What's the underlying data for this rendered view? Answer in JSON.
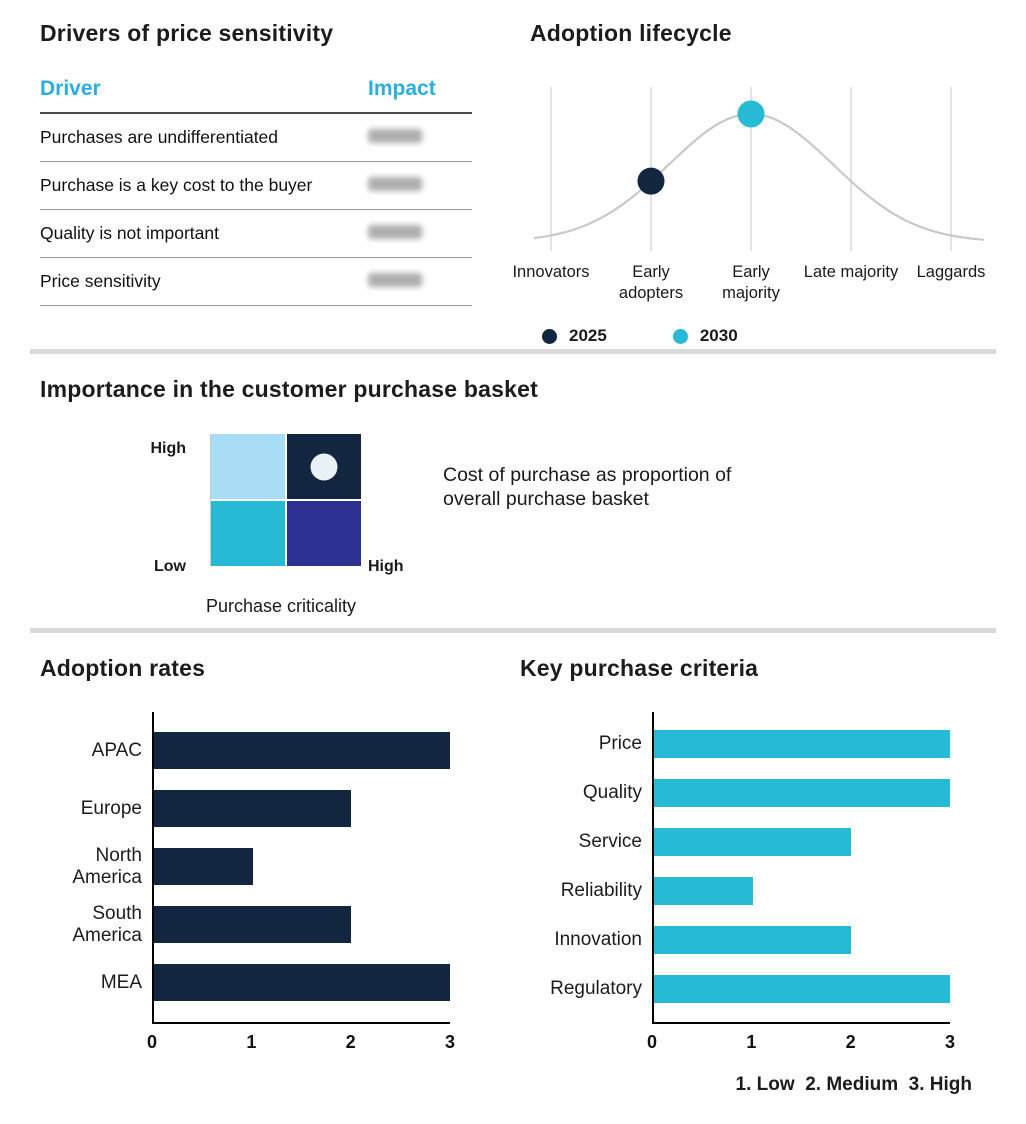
{
  "colors": {
    "navy": "#12263F",
    "cyan": "#26BAD5",
    "indigo": "#2E3192",
    "light_blue": "#A9DCF5",
    "pale_dot": "#E9F1F9",
    "header_accent": "#29AEDE",
    "curve_grey": "#C9C9C9",
    "grid_grey": "#DADADA",
    "divider": "#D9D9D9"
  },
  "chart_data": [
    {
      "id": "drivers_of_price_sensitivity",
      "type": "table",
      "title": "Drivers of price sensitivity",
      "columns": [
        "Driver",
        "Impact"
      ],
      "rows": [
        {
          "driver": "Purchases are undifferentiated",
          "impact_blurred": true
        },
        {
          "driver": "Purchase is a key cost to the buyer",
          "impact_blurred": true
        },
        {
          "driver": "Quality is not important",
          "impact_blurred": true
        },
        {
          "driver": "Price sensitivity",
          "impact_blurred": true
        }
      ]
    },
    {
      "id": "adoption_lifecycle",
      "type": "line",
      "title": "Adoption lifecycle",
      "categories": [
        "Innovators",
        "Early adopters",
        "Early majority",
        "Late majority",
        "Laggards"
      ],
      "curve": {
        "shape": "bell",
        "peak_category": "Early majority",
        "color": "#C9C9C9"
      },
      "markers": [
        {
          "series": "2025",
          "category": "Early adopters",
          "color": "#12263F"
        },
        {
          "series": "2030",
          "category": "Early majority",
          "color": "#26BAD5"
        }
      ],
      "legend": [
        {
          "label": "2025",
          "color": "#12263F"
        },
        {
          "label": "2030",
          "color": "#26BAD5"
        }
      ],
      "grid": "vertical-gridlines-per-category"
    },
    {
      "id": "purchase_basket_matrix",
      "type": "heatmap",
      "title": "Importance in the customer purchase basket",
      "y_axis_labels": {
        "top": "High",
        "bottom": "Low"
      },
      "x_axis_end_label": "High",
      "xlabel": "Purchase criticality",
      "annotation": "Cost of purchase as proportion of\noverall purchase basket",
      "cells": [
        [
          {
            "row": "High",
            "col": "left",
            "color": "#A9DCF5"
          },
          {
            "row": "High",
            "col": "right",
            "color": "#12263F",
            "marker": "pale-dot"
          }
        ],
        [
          {
            "row": "Low",
            "col": "left",
            "color": "#26BAD5"
          },
          {
            "row": "Low",
            "col": "right",
            "color": "#2E3192"
          }
        ]
      ]
    },
    {
      "id": "adoption_rates",
      "type": "bar",
      "orientation": "horizontal",
      "title": "Adoption rates",
      "categories": [
        "APAC",
        "Europe",
        "North America",
        "South America",
        "MEA"
      ],
      "values": [
        3,
        2,
        1,
        2,
        3
      ],
      "xlim": [
        0,
        3
      ],
      "ticks": [
        "0",
        "1",
        "2",
        "3"
      ],
      "bar_color": "#12263F"
    },
    {
      "id": "key_purchase_criteria",
      "type": "bar",
      "orientation": "horizontal",
      "title": "Key purchase criteria",
      "categories": [
        "Price",
        "Quality",
        "Service",
        "Reliability",
        "Innovation",
        "Regulatory"
      ],
      "values": [
        3,
        3,
        2,
        1,
        2,
        3
      ],
      "xlim": [
        0,
        3
      ],
      "ticks": [
        "0",
        "1",
        "2",
        "3"
      ],
      "bar_color": "#26BAD5",
      "scale_note": "1. Low  2. Medium  3. High"
    }
  ]
}
